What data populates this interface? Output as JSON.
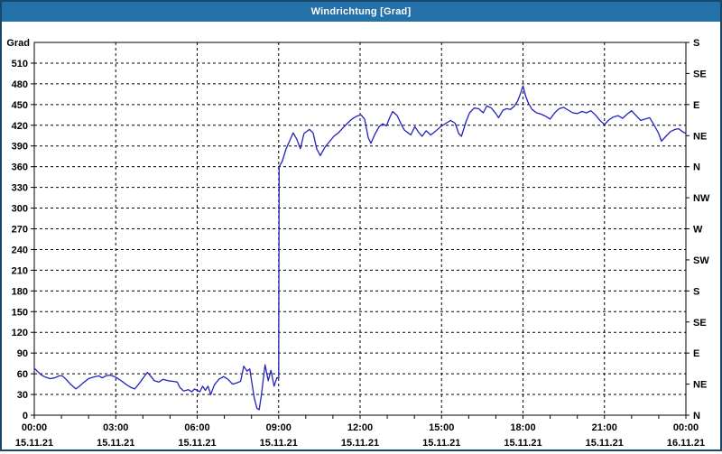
{
  "window": {
    "title": "Windrichtung [Grad]"
  },
  "colors": {
    "titlebar_bg": "#2470a8",
    "frame_border": "#17476b",
    "plot_bg": "#ffffff",
    "grid": "#000000",
    "axis": "#000000",
    "series_line": "#2323bd",
    "title_text": "#ffffff",
    "label_text": "#000000"
  },
  "chart_data": {
    "type": "line",
    "title": "Windrichtung [Grad]",
    "ylabel_left": "Grad",
    "y_range": [
      0,
      540
    ],
    "y_left_ticks": [
      0,
      30,
      60,
      90,
      120,
      150,
      180,
      210,
      240,
      270,
      300,
      330,
      360,
      390,
      420,
      450,
      480,
      510
    ],
    "y_right_ticks_deg": [
      0,
      45,
      90,
      135,
      180,
      225,
      270,
      315,
      360,
      405,
      450,
      495,
      540
    ],
    "y_right_labels_bottom_to_top": [
      "N",
      "NE",
      "E",
      "SE",
      "S",
      "SW",
      "W",
      "NW",
      "N",
      "NE",
      "E",
      "SE",
      "S"
    ],
    "x_range_minutes": [
      0,
      1440
    ],
    "x_major_step_minutes": 180,
    "x_minor_tick_minutes": 60,
    "x_ticks": [
      {
        "time": "00:00",
        "date": "15.11.21"
      },
      {
        "time": "03:00",
        "date": "15.11.21"
      },
      {
        "time": "06:00",
        "date": "15.11.21"
      },
      {
        "time": "09:00",
        "date": "15.11.21"
      },
      {
        "time": "12:00",
        "date": "15.11.21"
      },
      {
        "time": "15:00",
        "date": "15.11.21"
      },
      {
        "time": "18:00",
        "date": "15.11.21"
      },
      {
        "time": "21:00",
        "date": "15.11.21"
      },
      {
        "time": "00:00",
        "date": "16.11.21"
      }
    ],
    "grid": {
      "h_step_deg": 30,
      "v_step_minutes": 180,
      "style": "dashed"
    },
    "series": [
      {
        "name": "Windrichtung",
        "unit": "Grad",
        "points": [
          [
            0,
            68
          ],
          [
            8,
            63
          ],
          [
            16,
            58
          ],
          [
            25,
            55
          ],
          [
            35,
            53
          ],
          [
            45,
            54
          ],
          [
            55,
            57
          ],
          [
            62,
            57
          ],
          [
            70,
            52
          ],
          [
            80,
            45
          ],
          [
            92,
            38
          ],
          [
            100,
            42
          ],
          [
            110,
            48
          ],
          [
            120,
            53
          ],
          [
            130,
            55
          ],
          [
            143,
            57
          ],
          [
            150,
            54
          ],
          [
            158,
            57
          ],
          [
            168,
            58
          ],
          [
            180,
            55
          ],
          [
            192,
            50
          ],
          [
            204,
            44
          ],
          [
            214,
            40
          ],
          [
            222,
            38
          ],
          [
            232,
            46
          ],
          [
            242,
            55
          ],
          [
            250,
            62
          ],
          [
            258,
            56
          ],
          [
            265,
            50
          ],
          [
            275,
            48
          ],
          [
            285,
            52
          ],
          [
            295,
            50
          ],
          [
            307,
            49
          ],
          [
            316,
            48
          ],
          [
            322,
            40
          ],
          [
            330,
            35
          ],
          [
            340,
            37
          ],
          [
            348,
            34
          ],
          [
            354,
            38
          ],
          [
            360,
            36
          ],
          [
            366,
            34
          ],
          [
            372,
            42
          ],
          [
            378,
            36
          ],
          [
            384,
            42
          ],
          [
            390,
            30
          ],
          [
            398,
            44
          ],
          [
            408,
            52
          ],
          [
            418,
            56
          ],
          [
            428,
            52
          ],
          [
            438,
            45
          ],
          [
            448,
            47
          ],
          [
            456,
            49
          ],
          [
            463,
            71
          ],
          [
            470,
            64
          ],
          [
            476,
            67
          ],
          [
            486,
            25
          ],
          [
            492,
            10
          ],
          [
            497,
            8
          ],
          [
            502,
            30
          ],
          [
            510,
            73
          ],
          [
            517,
            50
          ],
          [
            523,
            65
          ],
          [
            530,
            42
          ],
          [
            536,
            54
          ],
          [
            540,
            54
          ],
          [
            541,
            360
          ],
          [
            548,
            368
          ],
          [
            556,
            385
          ],
          [
            566,
            400
          ],
          [
            572,
            409
          ],
          [
            580,
            400
          ],
          [
            588,
            386
          ],
          [
            596,
            408
          ],
          [
            608,
            414
          ],
          [
            616,
            409
          ],
          [
            624,
            386
          ],
          [
            632,
            376
          ],
          [
            642,
            388
          ],
          [
            652,
            396
          ],
          [
            662,
            404
          ],
          [
            672,
            409
          ],
          [
            682,
            416
          ],
          [
            692,
            423
          ],
          [
            702,
            429
          ],
          [
            712,
            433
          ],
          [
            722,
            435
          ],
          [
            730,
            429
          ],
          [
            738,
            402
          ],
          [
            744,
            394
          ],
          [
            752,
            406
          ],
          [
            762,
            418
          ],
          [
            770,
            422
          ],
          [
            778,
            419
          ],
          [
            786,
            432
          ],
          [
            792,
            440
          ],
          [
            802,
            434
          ],
          [
            812,
            420
          ],
          [
            818,
            413
          ],
          [
            826,
            409
          ],
          [
            832,
            406
          ],
          [
            841,
            418
          ],
          [
            849,
            410
          ],
          [
            857,
            404
          ],
          [
            866,
            412
          ],
          [
            876,
            406
          ],
          [
            886,
            411
          ],
          [
            898,
            418
          ],
          [
            910,
            423
          ],
          [
            920,
            427
          ],
          [
            930,
            423
          ],
          [
            938,
            408
          ],
          [
            944,
            404
          ],
          [
            954,
            425
          ],
          [
            962,
            438
          ],
          [
            972,
            445
          ],
          [
            982,
            444
          ],
          [
            992,
            438
          ],
          [
            1000,
            448
          ],
          [
            1010,
            445
          ],
          [
            1020,
            437
          ],
          [
            1026,
            431
          ],
          [
            1036,
            442
          ],
          [
            1044,
            444
          ],
          [
            1052,
            443
          ],
          [
            1060,
            447
          ],
          [
            1068,
            455
          ],
          [
            1074,
            465
          ],
          [
            1080,
            477
          ],
          [
            1086,
            462
          ],
          [
            1092,
            452
          ],
          [
            1100,
            443
          ],
          [
            1110,
            438
          ],
          [
            1120,
            436
          ],
          [
            1130,
            433
          ],
          [
            1140,
            429
          ],
          [
            1150,
            438
          ],
          [
            1160,
            444
          ],
          [
            1170,
            446
          ],
          [
            1180,
            442
          ],
          [
            1190,
            438
          ],
          [
            1200,
            437
          ],
          [
            1210,
            440
          ],
          [
            1220,
            438
          ],
          [
            1230,
            441
          ],
          [
            1240,
            435
          ],
          [
            1250,
            427
          ],
          [
            1260,
            421
          ],
          [
            1270,
            428
          ],
          [
            1280,
            432
          ],
          [
            1290,
            434
          ],
          [
            1300,
            430
          ],
          [
            1310,
            436
          ],
          [
            1320,
            441
          ],
          [
            1330,
            434
          ],
          [
            1340,
            427
          ],
          [
            1350,
            429
          ],
          [
            1360,
            431
          ],
          [
            1370,
            420
          ],
          [
            1380,
            408
          ],
          [
            1386,
            397
          ],
          [
            1396,
            404
          ],
          [
            1406,
            411
          ],
          [
            1416,
            414
          ],
          [
            1424,
            415
          ],
          [
            1432,
            411
          ],
          [
            1440,
            408
          ]
        ]
      }
    ]
  }
}
